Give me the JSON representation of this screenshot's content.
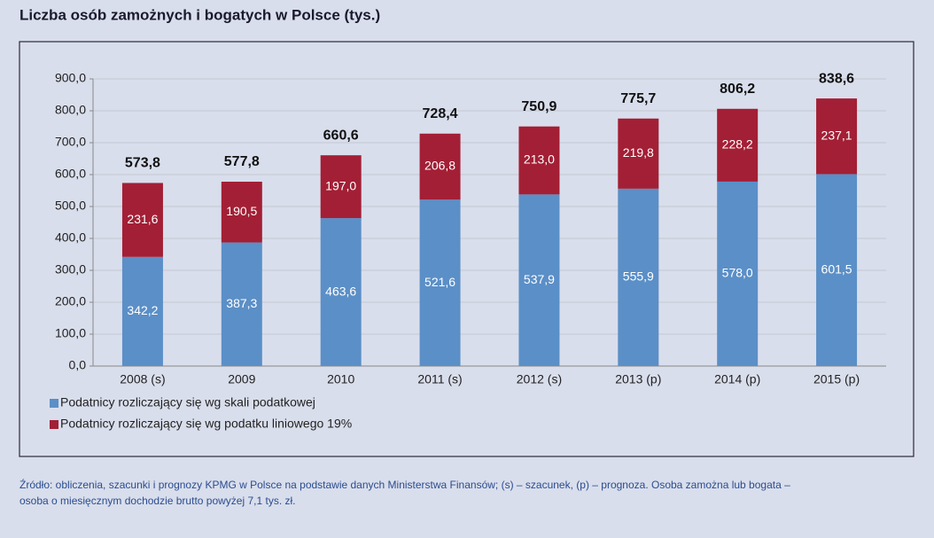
{
  "chart_data": {
    "type": "stacked-bar",
    "title": "Liczba osób zamożnych i bogatych w Polsce (tys.)",
    "categories": [
      "2008 (s)",
      "2009",
      "2010",
      "2011 (s)",
      "2012 (s)",
      "2013 (p)",
      "2014 (p)",
      "2015 (p)"
    ],
    "series": [
      {
        "name": "Podatnicy rozliczający się wg skali podatkowej",
        "color": "#5b8fc7",
        "values": [
          342.2,
          387.3,
          463.6,
          521.6,
          537.9,
          555.9,
          578.0,
          601.5
        ],
        "value_labels": [
          "342,2",
          "387,3",
          "463,6",
          "521,6",
          "537,9",
          "555,9",
          "578,0",
          "601,5"
        ]
      },
      {
        "name": "Podatnicy rozliczający się wg podatku liniowego 19%",
        "color": "#a31f35",
        "values": [
          231.6,
          190.5,
          197.0,
          206.8,
          213.0,
          219.8,
          228.2,
          237.1
        ],
        "value_labels": [
          "231,6",
          "190,5",
          "197,0",
          "206,8",
          "213,0",
          "219,8",
          "228,2",
          "237,1"
        ]
      }
    ],
    "totals": [
      573.8,
      577.8,
      660.6,
      728.4,
      750.9,
      775.7,
      806.2,
      838.6
    ],
    "total_labels": [
      "573,8",
      "577,8",
      "660,6",
      "728,4",
      "750,9",
      "775,7",
      "806,2",
      "838,6"
    ],
    "ylim": [
      0,
      900
    ],
    "yticks": [
      {
        "value": 0,
        "label": "0,0"
      },
      {
        "value": 100,
        "label": "100,0"
      },
      {
        "value": 200,
        "label": "200,0"
      },
      {
        "value": 300,
        "label": "300,0"
      },
      {
        "value": 400,
        "label": "400,0"
      },
      {
        "value": 500,
        "label": "500,0"
      },
      {
        "value": 600,
        "label": "600,0"
      },
      {
        "value": 700,
        "label": "700,0"
      },
      {
        "value": 800,
        "label": "800,0"
      },
      {
        "value": 900,
        "label": "900,0"
      }
    ],
    "grid": true,
    "footnote": [
      "Źródło: obliczenia, szacunki i prognozy KPMG w Polsce na podstawie danych Ministerstwa Finansów; (s) – szacunek, (p) – prognoza. Osoba zamożna lub bogata –",
      "osoba o miesięcznym dochodzie brutto powyżej 7,1 tys. zł."
    ]
  }
}
